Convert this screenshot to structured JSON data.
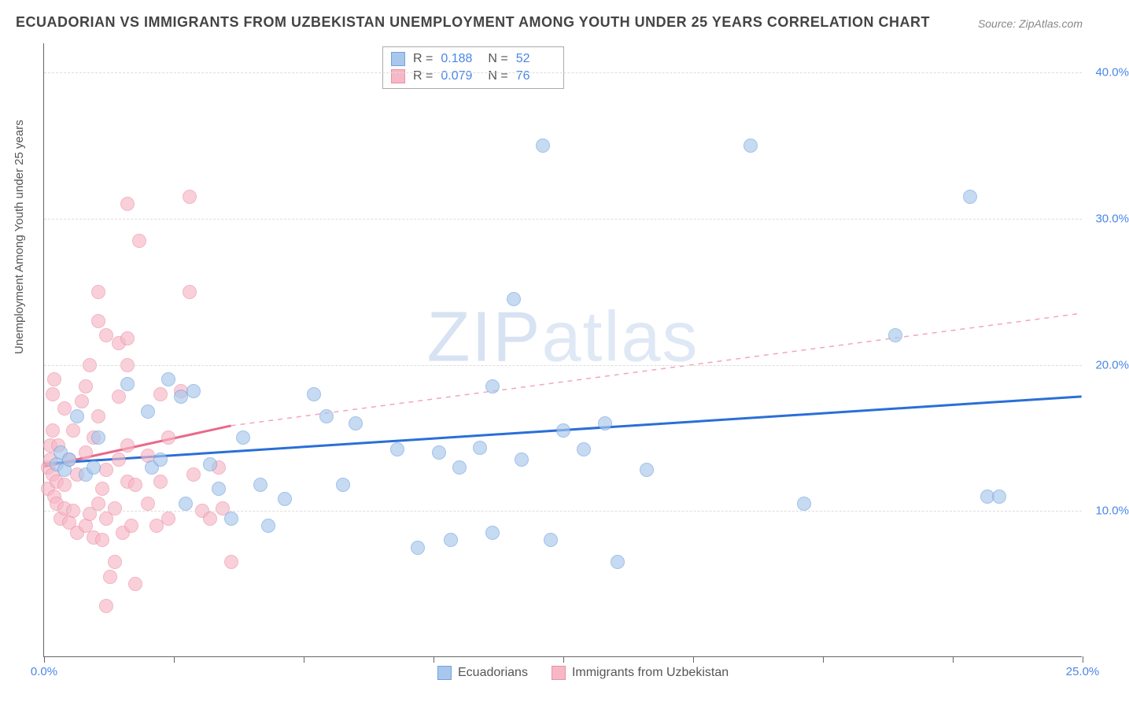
{
  "title": "ECUADORIAN VS IMMIGRANTS FROM UZBEKISTAN UNEMPLOYMENT AMONG YOUTH UNDER 25 YEARS CORRELATION CHART",
  "source": "Source: ZipAtlas.com",
  "ylabel": "Unemployment Among Youth under 25 years",
  "watermark_a": "ZIP",
  "watermark_b": "atlas",
  "xlim": [
    0,
    25
  ],
  "ylim": [
    0,
    42
  ],
  "xticks": [
    0,
    3.125,
    6.25,
    9.375,
    12.5,
    15.625,
    18.75,
    21.875,
    25
  ],
  "xtick_labels": {
    "0": "0.0%",
    "25": "25.0%"
  },
  "yticks": [
    10,
    20,
    30,
    40
  ],
  "ytick_labels": [
    "10.0%",
    "20.0%",
    "30.0%",
    "40.0%"
  ],
  "stats": [
    {
      "r": "0.188",
      "n": "52",
      "color_fill": "#a9c7ec",
      "color_stroke": "#6fa3de"
    },
    {
      "r": "0.079",
      "n": "76",
      "color_fill": "#f6b8c6",
      "color_stroke": "#ec8fa7"
    }
  ],
  "legend": [
    {
      "label": "Ecuadorians",
      "fill": "#a9c7ec",
      "stroke": "#6fa3de"
    },
    {
      "label": "Immigrants from Uzbekistan",
      "fill": "#f6b8c6",
      "stroke": "#ec8fa7"
    }
  ],
  "series": {
    "ecuadorians": {
      "fill": "#a9c7ec",
      "stroke": "#6fa3de",
      "marker_size": 18,
      "trend": {
        "x1": 0,
        "y1": 13.2,
        "x2": 25,
        "y2": 17.8,
        "color": "#2a6fd6",
        "width": 3,
        "dash": "none"
      },
      "points": [
        [
          0.3,
          13.2
        ],
        [
          0.4,
          14.0
        ],
        [
          0.5,
          12.8
        ],
        [
          0.6,
          13.5
        ],
        [
          0.8,
          16.5
        ],
        [
          1.0,
          12.5
        ],
        [
          1.2,
          13.0
        ],
        [
          1.3,
          15.0
        ],
        [
          2.0,
          18.7
        ],
        [
          2.5,
          16.8
        ],
        [
          2.6,
          13.0
        ],
        [
          2.8,
          13.5
        ],
        [
          3.0,
          19.0
        ],
        [
          3.3,
          17.8
        ],
        [
          3.4,
          10.5
        ],
        [
          3.6,
          18.2
        ],
        [
          4.0,
          13.2
        ],
        [
          4.2,
          11.5
        ],
        [
          4.5,
          9.5
        ],
        [
          4.8,
          15.0
        ],
        [
          5.2,
          11.8
        ],
        [
          5.4,
          9.0
        ],
        [
          5.8,
          10.8
        ],
        [
          6.5,
          18.0
        ],
        [
          6.8,
          16.5
        ],
        [
          7.2,
          11.8
        ],
        [
          7.5,
          16.0
        ],
        [
          8.5,
          14.2
        ],
        [
          9.0,
          7.5
        ],
        [
          9.5,
          14.0
        ],
        [
          9.8,
          8.0
        ],
        [
          10.0,
          13.0
        ],
        [
          10.5,
          14.3
        ],
        [
          10.8,
          8.5
        ],
        [
          10.8,
          18.5
        ],
        [
          11.3,
          24.5
        ],
        [
          11.5,
          13.5
        ],
        [
          12.0,
          35.0
        ],
        [
          12.2,
          8.0
        ],
        [
          12.5,
          15.5
        ],
        [
          13.0,
          14.2
        ],
        [
          13.5,
          16.0
        ],
        [
          13.8,
          6.5
        ],
        [
          14.5,
          12.8
        ],
        [
          17.0,
          35.0
        ],
        [
          18.3,
          10.5
        ],
        [
          20.5,
          22.0
        ],
        [
          22.3,
          31.5
        ],
        [
          22.7,
          11.0
        ],
        [
          23.0,
          11.0
        ]
      ]
    },
    "uzbekistan": {
      "fill": "#f6b8c6",
      "stroke": "#ec8fa7",
      "marker_size": 18,
      "trend_solid": {
        "x1": 0,
        "y1": 13.0,
        "x2": 4.5,
        "y2": 15.8,
        "color": "#e86a8a",
        "width": 3
      },
      "trend_dash": {
        "x1": 4.5,
        "y1": 15.8,
        "x2": 25,
        "y2": 23.5,
        "color": "#f2a6b8",
        "width": 1.5,
        "dash": "6,6"
      },
      "points": [
        [
          0.1,
          11.5
        ],
        [
          0.1,
          13.0
        ],
        [
          0.15,
          13.5
        ],
        [
          0.15,
          14.5
        ],
        [
          0.2,
          12.5
        ],
        [
          0.2,
          15.5
        ],
        [
          0.2,
          18.0
        ],
        [
          0.25,
          11.0
        ],
        [
          0.25,
          19.0
        ],
        [
          0.3,
          10.5
        ],
        [
          0.3,
          12.0
        ],
        [
          0.35,
          14.5
        ],
        [
          0.4,
          9.5
        ],
        [
          0.5,
          10.2
        ],
        [
          0.5,
          11.8
        ],
        [
          0.5,
          17.0
        ],
        [
          0.6,
          9.2
        ],
        [
          0.6,
          13.5
        ],
        [
          0.7,
          10.0
        ],
        [
          0.7,
          15.5
        ],
        [
          0.8,
          8.5
        ],
        [
          0.8,
          12.5
        ],
        [
          0.9,
          17.5
        ],
        [
          1.0,
          9.0
        ],
        [
          1.0,
          14.0
        ],
        [
          1.0,
          18.5
        ],
        [
          1.1,
          9.8
        ],
        [
          1.1,
          20.0
        ],
        [
          1.2,
          8.2
        ],
        [
          1.2,
          15.0
        ],
        [
          1.3,
          10.5
        ],
        [
          1.3,
          16.5
        ],
        [
          1.3,
          23.0
        ],
        [
          1.3,
          25.0
        ],
        [
          1.4,
          8.0
        ],
        [
          1.4,
          11.5
        ],
        [
          1.5,
          3.5
        ],
        [
          1.5,
          9.5
        ],
        [
          1.5,
          12.8
        ],
        [
          1.5,
          22.0
        ],
        [
          1.6,
          5.5
        ],
        [
          1.7,
          6.5
        ],
        [
          1.7,
          10.2
        ],
        [
          1.8,
          13.5
        ],
        [
          1.8,
          17.8
        ],
        [
          1.8,
          21.5
        ],
        [
          1.9,
          8.5
        ],
        [
          2.0,
          12.0
        ],
        [
          2.0,
          14.5
        ],
        [
          2.0,
          20.0
        ],
        [
          2.0,
          21.8
        ],
        [
          2.0,
          31.0
        ],
        [
          2.1,
          9.0
        ],
        [
          2.2,
          5.0
        ],
        [
          2.2,
          11.8
        ],
        [
          2.3,
          28.5
        ],
        [
          2.5,
          10.5
        ],
        [
          2.5,
          13.8
        ],
        [
          2.7,
          9.0
        ],
        [
          2.8,
          12.0
        ],
        [
          2.8,
          18.0
        ],
        [
          3.0,
          9.5
        ],
        [
          3.0,
          15.0
        ],
        [
          3.3,
          18.2
        ],
        [
          3.5,
          31.5
        ],
        [
          3.5,
          25.0
        ],
        [
          3.6,
          12.5
        ],
        [
          3.8,
          10.0
        ],
        [
          4.0,
          9.5
        ],
        [
          4.2,
          13.0
        ],
        [
          4.3,
          10.2
        ],
        [
          4.5,
          6.5
        ]
      ]
    }
  },
  "colors": {
    "axis": "#666666",
    "grid": "#dddddd",
    "tick_text": "#4a86e8",
    "title_text": "#444444",
    "body_text": "#555555",
    "background": "#ffffff"
  }
}
